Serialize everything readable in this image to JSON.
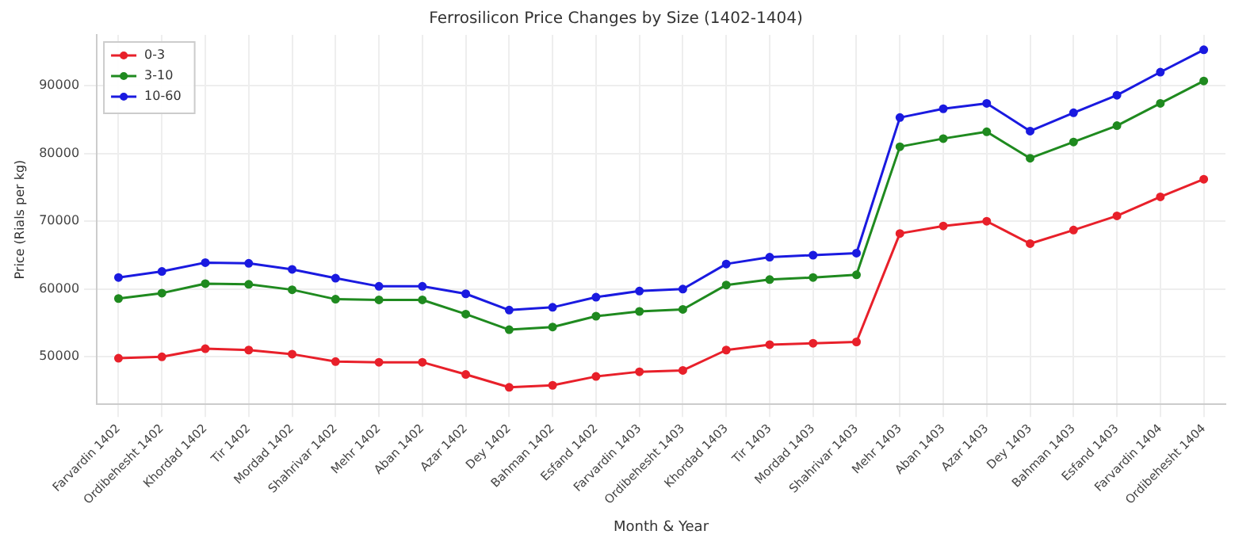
{
  "chart_data": {
    "type": "line",
    "title": "Ferrosilicon Price Changes by Size (1402-1404)",
    "xlabel": "Month & Year",
    "ylabel": "Price (Rials per kg)",
    "categories": [
      "Farvardin 1402",
      "Ordibehesht 1402",
      "Khordad 1402",
      "Tir 1402",
      "Mordad 1402",
      "Shahrivar 1402",
      "Mehr 1402",
      "Aban 1402",
      "Azar 1402",
      "Dey 1402",
      "Bahman 1402",
      "Esfand 1402",
      "Farvardin 1403",
      "Ordibehesht 1403",
      "Khordad 1403",
      "Tir 1403",
      "Mordad 1403",
      "Shahrivar 1403",
      "Mehr 1403",
      "Aban 1403",
      "Azar 1403",
      "Dey 1403",
      "Bahman 1403",
      "Esfand 1403",
      "Farvardin 1404",
      "Ordibehesht 1404"
    ],
    "series": [
      {
        "name": "0-3",
        "color": "#e8202a",
        "values": [
          49800,
          50000,
          51200,
          51000,
          50400,
          49300,
          49200,
          49200,
          47400,
          45500,
          45800,
          47100,
          47800,
          48000,
          51000,
          51800,
          52000,
          52200,
          68200,
          69300,
          70000,
          66700,
          68700,
          70800,
          73600,
          76200
        ]
      },
      {
        "name": "3-10",
        "color": "#1f8a1f",
        "values": [
          58600,
          59400,
          60800,
          60700,
          59900,
          58500,
          58400,
          58400,
          56300,
          54000,
          54400,
          56000,
          56700,
          57000,
          60600,
          61400,
          61700,
          62100,
          81000,
          82200,
          83200,
          79300,
          81700,
          84100,
          87400,
          90700
        ]
      },
      {
        "name": "10-60",
        "color": "#1a1ae0",
        "values": [
          61700,
          62600,
          63900,
          63800,
          62900,
          61600,
          60400,
          60400,
          59300,
          56900,
          57300,
          58800,
          59700,
          60000,
          63700,
          64700,
          65000,
          65300,
          85300,
          86600,
          87400,
          83300,
          86000,
          88600,
          92000,
          95300
        ]
      }
    ],
    "ylim": [
      43000,
      97500
    ],
    "yticks": [
      50000,
      60000,
      70000,
      80000,
      90000
    ],
    "grid": true,
    "legend": "top left",
    "marker": "circle",
    "line_style": "solid"
  }
}
